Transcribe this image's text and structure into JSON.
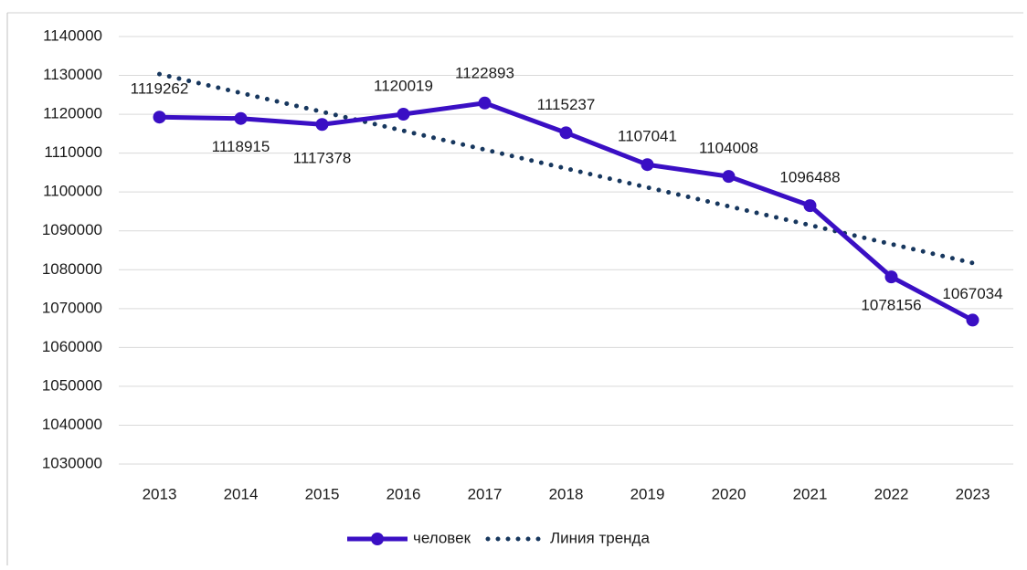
{
  "chart_data": {
    "type": "line",
    "categories": [
      "2013",
      "2014",
      "2015",
      "2016",
      "2017",
      "2018",
      "2019",
      "2020",
      "2021",
      "2022",
      "2023"
    ],
    "series": [
      {
        "name": "человек",
        "color": "#3a0fc4",
        "values": [
          1119262,
          1118915,
          1117378,
          1120019,
          1122893,
          1115237,
          1107041,
          1104008,
          1096488,
          1078156,
          1067034
        ]
      },
      {
        "name": "Линия тренда",
        "color": "#17375e",
        "dotted": true,
        "values": [
          1130344,
          1125483,
          1120622,
          1115761,
          1110900,
          1106039,
          1101178,
          1096317,
          1091456,
          1086595,
          1081734
        ]
      }
    ],
    "ylim": [
      1030000,
      1140000
    ],
    "yticks": [
      1030000,
      1040000,
      1050000,
      1060000,
      1070000,
      1080000,
      1090000,
      1100000,
      1110000,
      1120000,
      1130000,
      1140000
    ],
    "grid": true,
    "legend": "bottom"
  }
}
